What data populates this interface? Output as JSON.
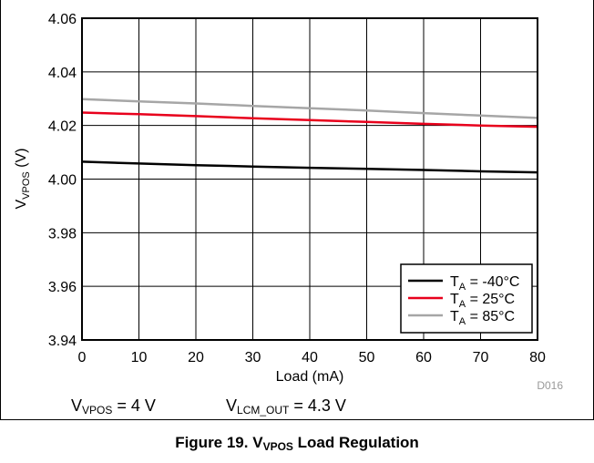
{
  "chart_data": {
    "type": "line",
    "xlabel": "Load (mA)",
    "ylabel": {
      "main": "V",
      "sub": "VPOS",
      "unit": " (V)"
    },
    "xlim": [
      0,
      80
    ],
    "ylim": [
      3.94,
      4.06
    ],
    "x_ticks": [
      0,
      10,
      20,
      30,
      40,
      50,
      60,
      70,
      80
    ],
    "y_ticks": [
      3.94,
      3.96,
      3.98,
      4.0,
      4.02,
      4.04,
      4.06
    ],
    "y_tick_labels": [
      "3.94",
      "3.96",
      "3.98",
      "4.00",
      "4.02",
      "4.04",
      "4.06"
    ],
    "grid": true,
    "legend_position": "bottom-right",
    "series": [
      {
        "name": "T_A = -40°C",
        "label_main": "T",
        "label_sub": "A",
        "label_rest": " = -40°C",
        "color": "#000000",
        "x": [
          0,
          10,
          20,
          30,
          40,
          50,
          60,
          70,
          80
        ],
        "y": [
          4.0065,
          4.0058,
          4.0052,
          4.0047,
          4.0042,
          4.0038,
          4.0034,
          4.0029,
          4.0025
        ]
      },
      {
        "name": "T_A = 25°C",
        "label_main": "T",
        "label_sub": "A",
        "label_rest": " = 25°C",
        "color": "#e8001c",
        "x": [
          0,
          10,
          20,
          30,
          40,
          50,
          60,
          70,
          80
        ],
        "y": [
          4.0248,
          4.0242,
          4.0235,
          4.0227,
          4.022,
          4.0213,
          4.0206,
          4.02,
          4.0195
        ]
      },
      {
        "name": "T_A = 85°C",
        "label_main": "T",
        "label_sub": "A",
        "label_rest": " = 85°C",
        "color": "#a6a6a6",
        "x": [
          0,
          10,
          20,
          30,
          40,
          50,
          60,
          70,
          80
        ],
        "y": [
          4.0298,
          4.029,
          4.0282,
          4.0273,
          4.0264,
          4.0256,
          4.0246,
          4.0237,
          4.0228
        ]
      }
    ],
    "annotation": "D016"
  },
  "conditions": {
    "vpos_main": "V",
    "vpos_sub": "VPOS",
    "vpos_rest": " = 4 V",
    "vlcm_main": "V",
    "vlcm_sub": "LCM_OUT",
    "vlcm_rest": " = 4.3 V"
  },
  "caption": {
    "prefix": "Figure 19. V",
    "sub": "VPOS",
    "suffix": " Load Regulation"
  }
}
